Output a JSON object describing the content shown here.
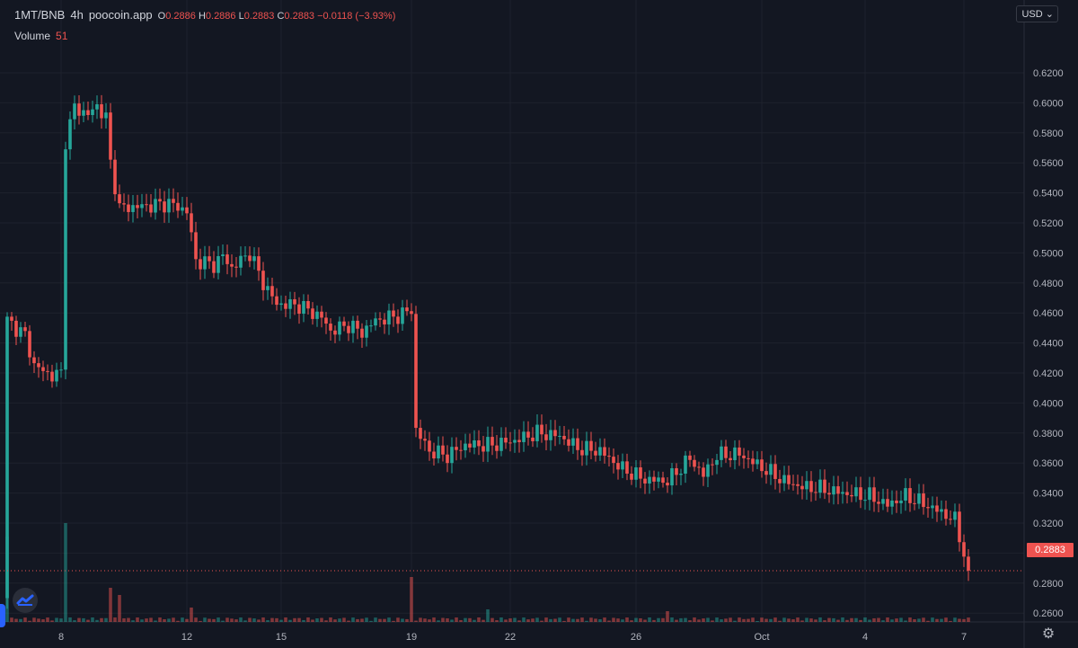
{
  "legend": {
    "symbol": "1MT/BNB",
    "interval": "4h",
    "source": "poocoin.app",
    "open_label": "O",
    "open": "0.2886",
    "high_label": "H",
    "high": "0.2886",
    "low_label": "L",
    "low": "0.2883",
    "close_label": "C",
    "close": "0.2883",
    "change": "−0.0118 (−3.93%)",
    "volume_label": "Volume",
    "volume_value": "51"
  },
  "currency": "USD",
  "last_price_tag": "0.2883",
  "colors": {
    "up": "#26a69a",
    "down": "#ef5350",
    "background": "#131722",
    "grid": "#1e222d"
  },
  "icons": {
    "logo": "tradingview-logo-icon",
    "settings": "gear-icon",
    "currency": "chevron-down-icon"
  },
  "chart_data": {
    "type": "candlestick",
    "x_tick_labels": [
      "8",
      "12",
      "15",
      "19",
      "22",
      "26",
      "Oct",
      "4",
      "7"
    ],
    "y_tick_labels": [
      "0.6200",
      "0.6000",
      "0.5800",
      "0.5600",
      "0.5400",
      "0.5200",
      "0.5000",
      "0.4800",
      "0.4600",
      "0.4400",
      "0.4200",
      "0.4000",
      "0.3800",
      "0.3600",
      "0.3400",
      "0.3200",
      "0.3000",
      "0.2800",
      "0.2600"
    ],
    "ylim": [
      0.245,
      0.63
    ],
    "grid": true,
    "last_price": 0.2883,
    "keyframes_close": [
      [
        0,
        0.455
      ],
      [
        4,
        0.445
      ],
      [
        6,
        0.425
      ],
      [
        10,
        0.418
      ],
      [
        12,
        0.42
      ],
      [
        13,
        0.575
      ],
      [
        15,
        0.597
      ],
      [
        18,
        0.592
      ],
      [
        20,
        0.598
      ],
      [
        22,
        0.59
      ],
      [
        23,
        0.56
      ],
      [
        25,
        0.53
      ],
      [
        30,
        0.531
      ],
      [
        36,
        0.533
      ],
      [
        40,
        0.528
      ],
      [
        42,
        0.495
      ],
      [
        46,
        0.492
      ],
      [
        48,
        0.498
      ],
      [
        50,
        0.49
      ],
      [
        54,
        0.5
      ],
      [
        57,
        0.48
      ],
      [
        60,
        0.466
      ],
      [
        65,
        0.465
      ],
      [
        70,
        0.457
      ],
      [
        72,
        0.448
      ],
      [
        76,
        0.452
      ],
      [
        79,
        0.447
      ],
      [
        82,
        0.455
      ],
      [
        87,
        0.458
      ],
      [
        90,
        0.462
      ],
      [
        91,
        0.382
      ],
      [
        94,
        0.368
      ],
      [
        98,
        0.365
      ],
      [
        102,
        0.372
      ],
      [
        108,
        0.372
      ],
      [
        113,
        0.375
      ],
      [
        118,
        0.38
      ],
      [
        123,
        0.378
      ],
      [
        127,
        0.37
      ],
      [
        132,
        0.368
      ],
      [
        137,
        0.356
      ],
      [
        142,
        0.349
      ],
      [
        147,
        0.348
      ],
      [
        152,
        0.363
      ],
      [
        155,
        0.352
      ],
      [
        158,
        0.365
      ],
      [
        163,
        0.366
      ],
      [
        168,
        0.357
      ],
      [
        173,
        0.348
      ],
      [
        177,
        0.344
      ],
      [
        181,
        0.343
      ],
      [
        186,
        0.34
      ],
      [
        192,
        0.338
      ],
      [
        196,
        0.332
      ],
      [
        200,
        0.338
      ],
      [
        204,
        0.333
      ],
      [
        208,
        0.327
      ],
      [
        211,
        0.322
      ],
      [
        213,
        0.3
      ],
      [
        214,
        0.2886
      ]
    ],
    "volume_spikes": [
      [
        0,
        95
      ],
      [
        13,
        110
      ],
      [
        23,
        38
      ],
      [
        25,
        30
      ],
      [
        41,
        16
      ],
      [
        90,
        50
      ],
      [
        107,
        14
      ],
      [
        147,
        12
      ]
    ],
    "volume_baseline": [
      1,
      5
    ]
  }
}
